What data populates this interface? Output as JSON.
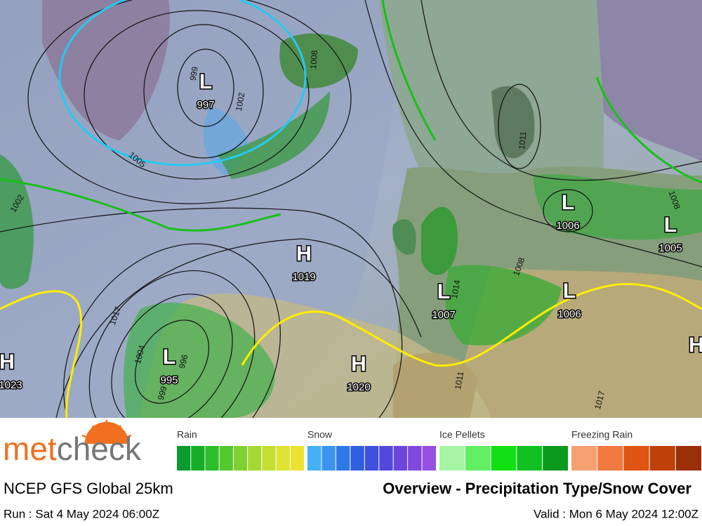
{
  "map": {
    "pressure_centers": [
      {
        "symbol": "L",
        "value": 997
      },
      {
        "symbol": "L",
        "value": 995
      },
      {
        "symbol": "H",
        "value": 1019
      },
      {
        "symbol": "H",
        "value": 1020
      },
      {
        "symbol": "L",
        "value": 1007
      },
      {
        "symbol": "L",
        "value": 1006
      },
      {
        "symbol": "L",
        "value": 1006
      },
      {
        "symbol": "L",
        "value": 1005
      },
      {
        "symbol": "H",
        "value": 1023
      },
      {
        "symbol": "H"
      }
    ],
    "isobar_labels": [
      999,
      1002,
      1005,
      1008,
      1002,
      1017,
      1004,
      996,
      999,
      1011,
      1008,
      1008,
      1017,
      1014,
      1011
    ]
  },
  "legend": [
    {
      "label": "Rain",
      "colors": [
        "#0b9a2d",
        "#16ad28",
        "#2bbd2a",
        "#52c72e",
        "#80d032",
        "#a5d834",
        "#c6dd34",
        "#dde233",
        "#ece231"
      ]
    },
    {
      "label": "Snow",
      "colors": [
        "#45b0f5",
        "#3b95f0",
        "#2f78e8",
        "#2f60e0",
        "#3f50de",
        "#5348de",
        "#6a46de",
        "#8148de",
        "#9850e0"
      ]
    },
    {
      "label": "Ice Pellets",
      "colors": [
        "#a5f5a5",
        "#62ee62",
        "#12e012",
        "#10c020",
        "#0b9a1c"
      ]
    },
    {
      "label": "Freezing Rain",
      "colors": [
        "#f5a070",
        "#f07a40",
        "#e05512",
        "#c0400a",
        "#9a3008"
      ]
    }
  ],
  "footer": {
    "brand": [
      "met",
      "check"
    ],
    "model": "NCEP GFS Global 25km",
    "title": "Overview - Precipitation Type/Snow Cover",
    "run": "Run : Sat 4 May 2024 06:00Z",
    "valid": "Valid : Mon 6 May 2024 12:00Z"
  }
}
